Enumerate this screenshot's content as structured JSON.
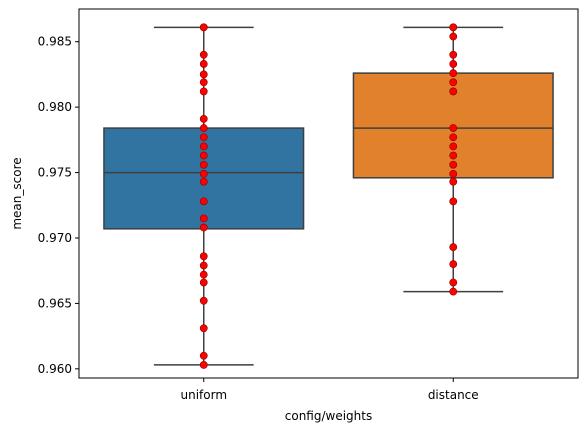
{
  "chart_data": {
    "type": "box",
    "xlabel": "config/weights",
    "ylabel": "mean_score",
    "ylim": [
      0.9593,
      0.9875
    ],
    "yticks": [
      "0.960",
      "0.965",
      "0.970",
      "0.975",
      "0.980",
      "0.985"
    ],
    "grid": false,
    "categories": [
      "uniform",
      "distance"
    ],
    "boxes": [
      {
        "category": "uniform",
        "color": "#3274a1",
        "whisker_low": 0.9603,
        "q1": 0.9707,
        "median": 0.975,
        "q3": 0.9784,
        "whisker_high": 0.9861
      },
      {
        "category": "distance",
        "color": "#e1812c",
        "whisker_low": 0.9659,
        "q1": 0.9746,
        "median": 0.9784,
        "q3": 0.9826,
        "whisker_high": 0.9861
      }
    ],
    "points": {
      "color": "#ff0000",
      "edge_color": "#8b0000",
      "uniform": [
        0.9861,
        0.984,
        0.9833,
        0.9825,
        0.9819,
        0.9812,
        0.9791,
        0.9784,
        0.9777,
        0.977,
        0.9763,
        0.9756,
        0.9749,
        0.9743,
        0.9728,
        0.9715,
        0.9708,
        0.9686,
        0.9679,
        0.9672,
        0.9666,
        0.9652,
        0.9631,
        0.961,
        0.9603
      ],
      "distance": [
        0.9861,
        0.9854,
        0.984,
        0.9833,
        0.9826,
        0.9819,
        0.9812,
        0.9784,
        0.9777,
        0.977,
        0.9763,
        0.9756,
        0.9749,
        0.9743,
        0.9728,
        0.9693,
        0.968,
        0.9666,
        0.9659
      ]
    }
  }
}
